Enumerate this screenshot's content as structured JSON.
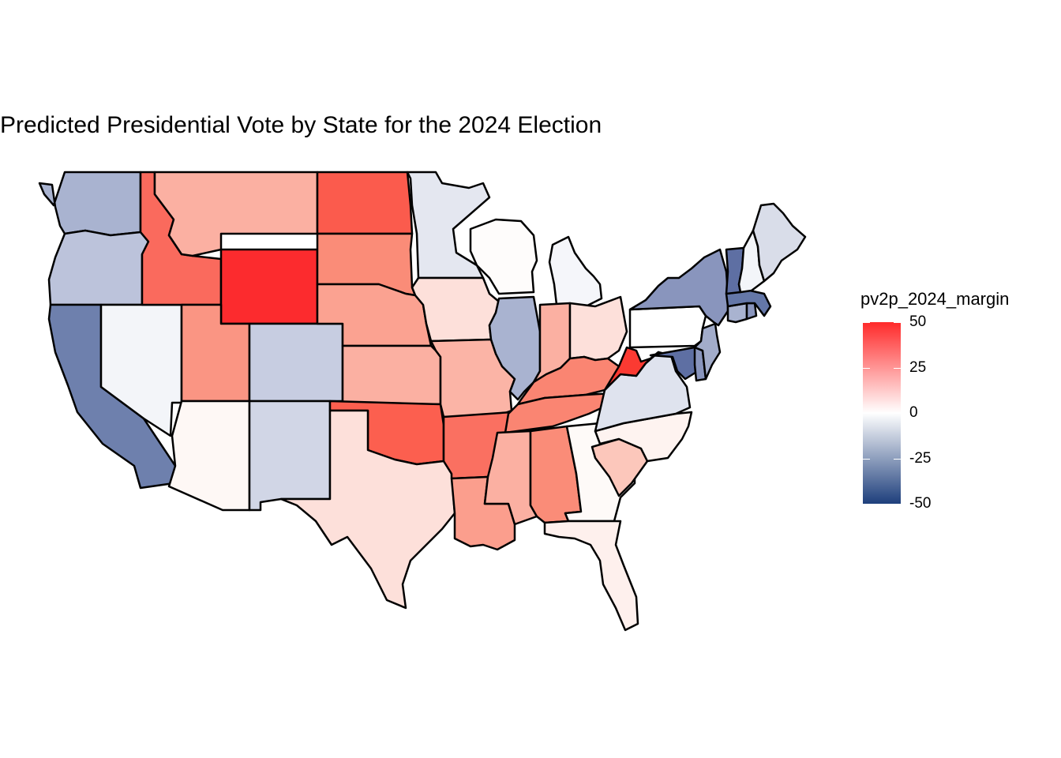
{
  "title": "Predicted Presidential Vote by State for the 2024 Election",
  "legend": {
    "title": "pv2p_2024_margin",
    "ticks": [
      "50",
      "25",
      "0",
      "-25",
      "-50"
    ],
    "range": [
      -50,
      50
    ],
    "colors": {
      "high": "#ff2a2a",
      "mid": "#ffffff",
      "low": "#1e3f7c"
    }
  },
  "states": [
    {
      "name": "Washington",
      "fill": "#a9b3d0"
    },
    {
      "name": "Oregon",
      "fill": "#bcc3db"
    },
    {
      "name": "California",
      "fill": "#6e80ad"
    },
    {
      "name": "Nevada",
      "fill": "#f3f5f9"
    },
    {
      "name": "Idaho",
      "fill": "#fa6a5d"
    },
    {
      "name": "Montana",
      "fill": "#fbb0a2"
    },
    {
      "name": "Wyoming",
      "fill": "#fc2b2e"
    },
    {
      "name": "Utah",
      "fill": "#fa9583"
    },
    {
      "name": "Arizona",
      "fill": "#fef8f5"
    },
    {
      "name": "Colorado",
      "fill": "#c7cde1"
    },
    {
      "name": "New Mexico",
      "fill": "#d1d6e6"
    },
    {
      "name": "North Dakota",
      "fill": "#fb5b4d"
    },
    {
      "name": "South Dakota",
      "fill": "#fa8c78"
    },
    {
      "name": "Nebraska",
      "fill": "#fba291"
    },
    {
      "name": "Kansas",
      "fill": "#fbb0a2"
    },
    {
      "name": "Oklahoma",
      "fill": "#fc5f4f"
    },
    {
      "name": "Texas",
      "fill": "#fde0da"
    },
    {
      "name": "Minnesota",
      "fill": "#e4e7f0"
    },
    {
      "name": "Iowa",
      "fill": "#fde0da"
    },
    {
      "name": "Missouri",
      "fill": "#fbb4a6"
    },
    {
      "name": "Arkansas",
      "fill": "#fa7061"
    },
    {
      "name": "Louisiana",
      "fill": "#fb9e8d"
    },
    {
      "name": "Wisconsin",
      "fill": "#fefcfb"
    },
    {
      "name": "Illinois",
      "fill": "#a9b3d0"
    },
    {
      "name": "Michigan",
      "fill": "#f5f6fa"
    },
    {
      "name": "Indiana",
      "fill": "#fbb0a2"
    },
    {
      "name": "Ohio",
      "fill": "#fde0da"
    },
    {
      "name": "Kentucky",
      "fill": "#fa8572"
    },
    {
      "name": "Tennessee",
      "fill": "#fa8572"
    },
    {
      "name": "Mississippi",
      "fill": "#fbb0a2"
    },
    {
      "name": "Alabama",
      "fill": "#fa8c78"
    },
    {
      "name": "Georgia",
      "fill": "#fefaf8"
    },
    {
      "name": "Florida",
      "fill": "#fef0ed"
    },
    {
      "name": "South Carolina",
      "fill": "#fcc7bb"
    },
    {
      "name": "North Carolina",
      "fill": "#fef3f0"
    },
    {
      "name": "Virginia",
      "fill": "#dfe3ee"
    },
    {
      "name": "West Virginia",
      "fill": "#fb3a32"
    },
    {
      "name": "Pennsylvania",
      "fill": "#ffffff"
    },
    {
      "name": "New York",
      "fill": "#8995bd"
    },
    {
      "name": "Maryland",
      "fill": "#5e6fa3"
    },
    {
      "name": "Delaware",
      "fill": "#8995bd"
    },
    {
      "name": "New Jersey",
      "fill": "#a2acca"
    },
    {
      "name": "Connecticut",
      "fill": "#a9b3d0"
    },
    {
      "name": "Rhode Island",
      "fill": "#8995bd"
    },
    {
      "name": "Massachusetts",
      "fill": "#6477a8"
    },
    {
      "name": "Vermont",
      "fill": "#5e6fa3"
    },
    {
      "name": "New Hampshire",
      "fill": "#f3f5f9"
    },
    {
      "name": "Maine",
      "fill": "#d9dde9"
    }
  ]
}
